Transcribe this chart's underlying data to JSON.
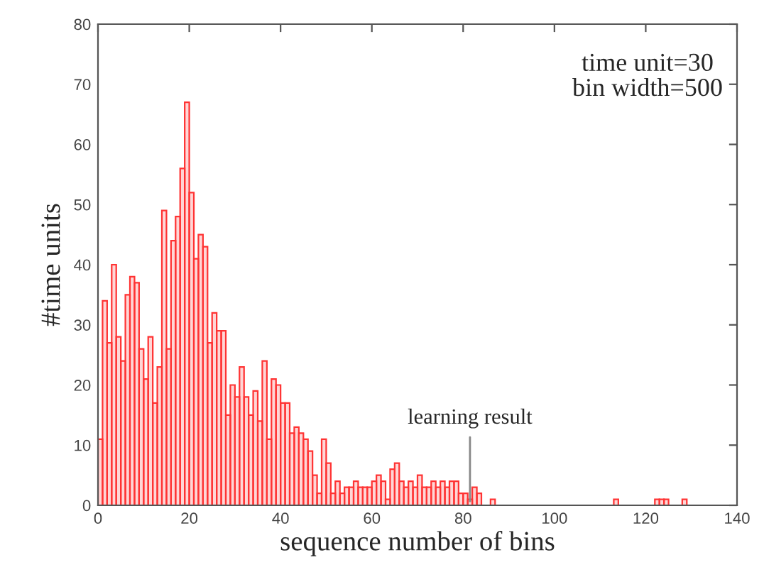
{
  "chart_data": {
    "type": "histogram",
    "xlabel": "sequence number of bins",
    "ylabel": "#time units",
    "bins": [
      0,
      1,
      2,
      3,
      4,
      5,
      6,
      7,
      8,
      9,
      10,
      11,
      12,
      13,
      14,
      15,
      16,
      17,
      18,
      19,
      20,
      21,
      22,
      23,
      24,
      25,
      26,
      27,
      28,
      29,
      30,
      31,
      32,
      33,
      34,
      35,
      36,
      37,
      38,
      39,
      40,
      41,
      42,
      43,
      44,
      45,
      46,
      47,
      48,
      49,
      50,
      51,
      52,
      53,
      54,
      55,
      56,
      57,
      58,
      59,
      60,
      61,
      62,
      63,
      64,
      65,
      66,
      67,
      68,
      69,
      70,
      71,
      72,
      73,
      74,
      75,
      76,
      77,
      78,
      79,
      80,
      81,
      82,
      83,
      84,
      85,
      86,
      87,
      88,
      89,
      90,
      91,
      92,
      93,
      94,
      95,
      96,
      97,
      98,
      99,
      100,
      101,
      102,
      103,
      104,
      105,
      106,
      107,
      108,
      109,
      110,
      111,
      112,
      113,
      114,
      115,
      116,
      117,
      118,
      119,
      120,
      121,
      122,
      123,
      124,
      125,
      126,
      127,
      128,
      129,
      130
    ],
    "values": [
      11,
      34,
      27,
      40,
      28,
      24,
      35,
      38,
      37,
      26,
      21,
      28,
      17,
      23,
      49,
      26,
      44,
      48,
      56,
      67,
      52,
      41,
      45,
      43,
      27,
      32,
      29,
      29,
      15,
      20,
      18,
      23,
      18,
      15,
      19,
      14,
      24,
      11,
      21,
      20,
      17,
      17,
      12,
      13,
      12,
      11,
      9,
      5,
      2,
      11,
      7,
      2,
      4,
      2,
      3,
      3,
      4,
      3,
      3,
      3,
      4,
      5,
      4,
      1,
      6,
      7,
      4,
      3,
      4,
      3,
      5,
      3,
      3,
      4,
      3,
      4,
      3,
      4,
      4,
      2,
      2,
      1,
      3,
      2,
      0,
      0,
      1,
      0,
      0,
      0,
      0,
      0,
      0,
      0,
      0,
      0,
      0,
      0,
      0,
      0,
      0,
      0,
      0,
      0,
      0,
      0,
      0,
      0,
      0,
      0,
      0,
      0,
      0,
      1,
      0,
      0,
      0,
      0,
      0,
      0,
      0,
      0,
      1,
      1,
      1,
      0,
      0,
      0,
      1,
      0
    ],
    "color": "#ff3333",
    "xlim": [
      0,
      140
    ],
    "xticks": [
      0,
      20,
      40,
      60,
      80,
      100,
      120,
      140
    ],
    "ylim": [
      0,
      80
    ],
    "yticks": [
      0,
      10,
      20,
      30,
      40,
      50,
      60,
      70,
      80
    ],
    "grid": false,
    "annotations": [
      "time unit=30\nbin width=500",
      {
        "text": "learning result",
        "x": 81.5,
        "y": 0
      }
    ]
  }
}
